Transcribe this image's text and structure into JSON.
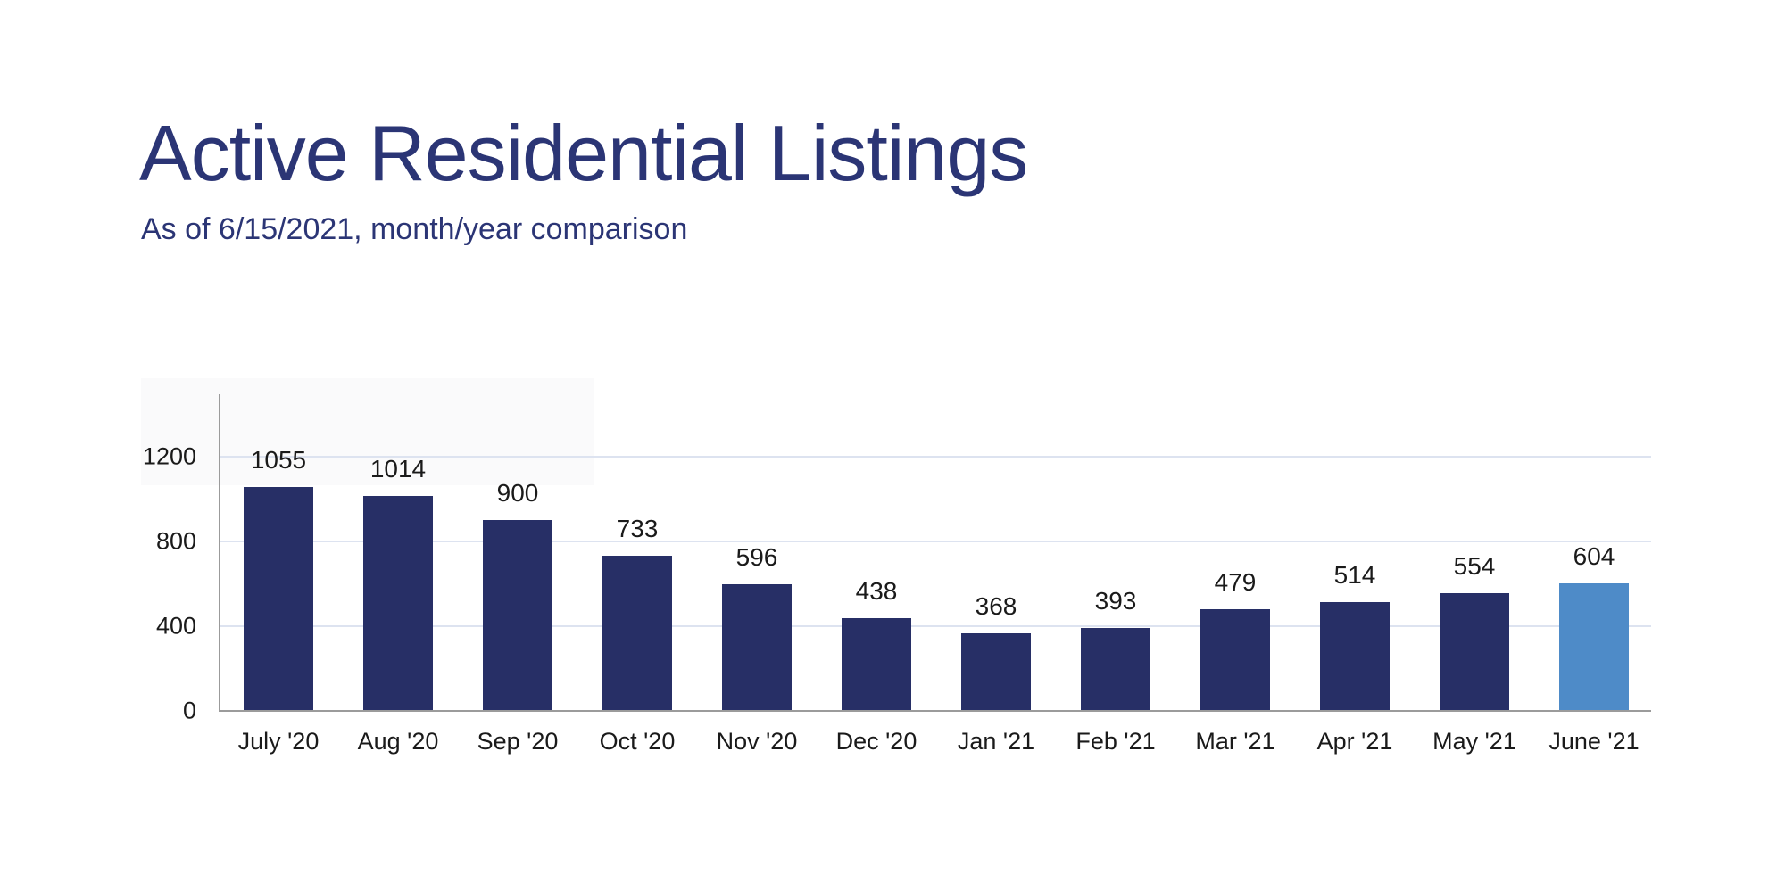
{
  "header": {
    "title": "Active Residential Listings",
    "subtitle": "As of 6/15/2021, month/year comparison"
  },
  "chart_data": {
    "type": "bar",
    "title": "Active Residential Listings",
    "subtitle": "As of 6/15/2021, month/year comparison",
    "categories": [
      "July '20",
      "Aug '20",
      "Sep '20",
      "Oct '20",
      "Nov '20",
      "Dec '20",
      "Jan '21",
      "Feb '21",
      "Mar '21",
      "Apr '21",
      "May '21",
      "June '21"
    ],
    "values": [
      1055,
      1014,
      900,
      733,
      596,
      438,
      368,
      393,
      479,
      514,
      554,
      604
    ],
    "data_labels_shown": true,
    "highlight_index": 11,
    "bar_color": "#272f66",
    "highlight_color": "#4e8bc8",
    "yticks": [
      0,
      400,
      800,
      1200
    ],
    "ylim": [
      0,
      1200
    ],
    "grid": "horizontal",
    "legend": "none",
    "axis_color": "#9b9b9b",
    "gridline_color": "#dde3f0",
    "label_color": "#1a1a1a",
    "title_color": "#2b3575"
  }
}
